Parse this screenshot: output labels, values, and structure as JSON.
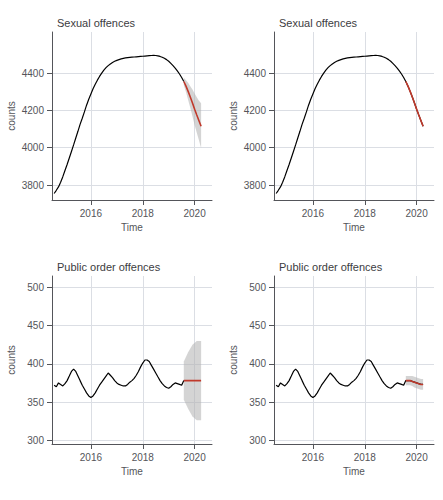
{
  "chart_data": [
    {
      "type": "line",
      "title": "Sexual offences",
      "xlabel": "Time",
      "ylabel": "counts",
      "xlim": [
        2014.5,
        2020.67
      ],
      "ylim": [
        3720,
        4620
      ],
      "xticks": [
        2016,
        2018,
        2020
      ],
      "yticks": [
        3800,
        4000,
        4200,
        4400
      ],
      "grid": true,
      "series": [
        {
          "type": "line",
          "color": "black",
          "x": [
            2014.583,
            2014.667,
            2014.75,
            2014.833,
            2014.917,
            2015.0,
            2015.083,
            2015.167,
            2015.25,
            2015.333,
            2015.417,
            2015.5,
            2015.583,
            2015.667,
            2015.75,
            2015.833,
            2015.917,
            2016.0,
            2016.083,
            2016.167,
            2016.25,
            2016.333,
            2016.417,
            2016.5,
            2016.583,
            2016.667,
            2016.75,
            2016.833,
            2016.917,
            2017.0,
            2017.083,
            2017.167,
            2017.25,
            2017.333,
            2017.417,
            2017.5,
            2017.583,
            2017.667,
            2017.75,
            2017.833,
            2017.917,
            2018.0,
            2018.083,
            2018.167,
            2018.25,
            2018.333,
            2018.417,
            2018.5,
            2018.583,
            2018.667,
            2018.75,
            2018.833,
            2018.917,
            2019.0,
            2019.083,
            2019.167,
            2019.25,
            2019.333,
            2019.417,
            2019.5,
            2019.583
          ],
          "values": [
            3755,
            3772,
            3790,
            3815,
            3845,
            3878,
            3910,
            3945,
            3980,
            4015,
            4052,
            4088,
            4125,
            4158,
            4192,
            4228,
            4260,
            4288,
            4316,
            4340,
            4362,
            4382,
            4400,
            4416,
            4429,
            4440,
            4449,
            4457,
            4463,
            4468,
            4472,
            4476,
            4479,
            4481,
            4483,
            4484,
            4485,
            4486,
            4487,
            4488,
            4489,
            4490,
            4491,
            4492,
            4493,
            4494,
            4495,
            4494,
            4492,
            4489,
            4485,
            4479,
            4472,
            4463,
            4452,
            4440,
            4427,
            4412,
            4395,
            4376,
            4355
          ]
        },
        {
          "type": "band",
          "color": "#b0b0b0",
          "x": [
            2019.583,
            2019.667,
            2019.75,
            2019.833,
            2019.917,
            2020.0,
            2020.083,
            2020.167,
            2020.25
          ],
          "lower": [
            4335,
            4298,
            4256,
            4214,
            4168,
            4122,
            4080,
            4040,
            3998
          ],
          "upper": [
            4375,
            4362,
            4348,
            4330,
            4312,
            4290,
            4270,
            4252,
            4238
          ]
        },
        {
          "type": "line",
          "color": "#c0392b",
          "x": [
            2019.583,
            2019.667,
            2019.75,
            2019.833,
            2019.917,
            2020.0,
            2020.083,
            2020.167,
            2020.25
          ],
          "values": [
            4355,
            4330,
            4302,
            4272,
            4240,
            4206,
            4175,
            4145,
            4115
          ]
        }
      ]
    },
    {
      "type": "line",
      "title": "Sexual offences",
      "xlabel": "Time",
      "ylabel": "counts",
      "xlim": [
        2014.5,
        2020.67
      ],
      "ylim": [
        3720,
        4620
      ],
      "xticks": [
        2016,
        2018,
        2020
      ],
      "yticks": [
        3800,
        4000,
        4200,
        4400
      ],
      "grid": true,
      "series": [
        {
          "type": "line",
          "color": "black",
          "x": [
            2014.583,
            2014.667,
            2014.75,
            2014.833,
            2014.917,
            2015.0,
            2015.083,
            2015.167,
            2015.25,
            2015.333,
            2015.417,
            2015.5,
            2015.583,
            2015.667,
            2015.75,
            2015.833,
            2015.917,
            2016.0,
            2016.083,
            2016.167,
            2016.25,
            2016.333,
            2016.417,
            2016.5,
            2016.583,
            2016.667,
            2016.75,
            2016.833,
            2016.917,
            2017.0,
            2017.083,
            2017.167,
            2017.25,
            2017.333,
            2017.417,
            2017.5,
            2017.583,
            2017.667,
            2017.75,
            2017.833,
            2017.917,
            2018.0,
            2018.083,
            2018.167,
            2018.25,
            2018.333,
            2018.417,
            2018.5,
            2018.583,
            2018.667,
            2018.75,
            2018.833,
            2018.917,
            2019.0,
            2019.083,
            2019.167,
            2019.25,
            2019.333,
            2019.417,
            2019.5,
            2019.583,
            2019.667,
            2019.75,
            2019.833,
            2019.917,
            2020.0,
            2020.083,
            2020.167,
            2020.25
          ],
          "values": [
            3755,
            3772,
            3790,
            3815,
            3845,
            3878,
            3910,
            3945,
            3980,
            4015,
            4052,
            4088,
            4125,
            4158,
            4192,
            4228,
            4260,
            4288,
            4316,
            4340,
            4362,
            4382,
            4400,
            4416,
            4429,
            4440,
            4449,
            4457,
            4463,
            4468,
            4472,
            4476,
            4479,
            4481,
            4483,
            4484,
            4485,
            4486,
            4487,
            4488,
            4489,
            4490,
            4491,
            4492,
            4493,
            4494,
            4495,
            4494,
            4492,
            4489,
            4485,
            4479,
            4472,
            4463,
            4452,
            4440,
            4427,
            4412,
            4395,
            4376,
            4355,
            4330,
            4302,
            4272,
            4240,
            4206,
            4175,
            4145,
            4115
          ]
        },
        {
          "type": "line",
          "color": "#c0392b",
          "x": [
            2019.583,
            2019.667,
            2019.75,
            2019.833,
            2019.917,
            2020.0,
            2020.083,
            2020.167,
            2020.25
          ],
          "values": [
            4355,
            4330,
            4302,
            4272,
            4240,
            4206,
            4175,
            4145,
            4115
          ]
        }
      ]
    },
    {
      "type": "line",
      "title": "Public order offences",
      "xlabel": "Time",
      "ylabel": "counts",
      "xlim": [
        2014.5,
        2020.67
      ],
      "ylim": [
        295,
        515
      ],
      "xticks": [
        2016,
        2018,
        2020
      ],
      "yticks": [
        300,
        350,
        400,
        450,
        500
      ],
      "grid": true,
      "series": [
        {
          "type": "line",
          "color": "black",
          "x": [
            2014.583,
            2014.667,
            2014.75,
            2014.833,
            2014.917,
            2015.0,
            2015.083,
            2015.167,
            2015.25,
            2015.333,
            2015.417,
            2015.5,
            2015.583,
            2015.667,
            2015.75,
            2015.833,
            2015.917,
            2016.0,
            2016.083,
            2016.167,
            2016.25,
            2016.333,
            2016.417,
            2016.5,
            2016.583,
            2016.667,
            2016.75,
            2016.833,
            2016.917,
            2017.0,
            2017.083,
            2017.167,
            2017.25,
            2017.333,
            2017.417,
            2017.5,
            2017.583,
            2017.667,
            2017.75,
            2017.833,
            2017.917,
            2018.0,
            2018.083,
            2018.167,
            2018.25,
            2018.333,
            2018.417,
            2018.5,
            2018.583,
            2018.667,
            2018.75,
            2018.833,
            2018.917,
            2019.0,
            2019.083,
            2019.167,
            2019.25,
            2019.333,
            2019.417,
            2019.5,
            2019.583
          ],
          "values": [
            372,
            370,
            375,
            373,
            371,
            374,
            378,
            384,
            390,
            393,
            390,
            384,
            378,
            372,
            367,
            362,
            358,
            356,
            358,
            362,
            367,
            372,
            376,
            380,
            384,
            388,
            385,
            382,
            378,
            375,
            373,
            372,
            371,
            371,
            373,
            376,
            378,
            381,
            385,
            390,
            396,
            401,
            405,
            405,
            403,
            398,
            393,
            388,
            383,
            378,
            374,
            371,
            369,
            368,
            370,
            373,
            375,
            374,
            373,
            372,
            378
          ]
        },
        {
          "type": "band",
          "color": "#b0b0b0",
          "x": [
            2019.583,
            2019.75,
            2019.917,
            2020.083,
            2020.25
          ],
          "lower": [
            353,
            341,
            331,
            326,
            326
          ],
          "upper": [
            403,
            415,
            425,
            430,
            430
          ]
        },
        {
          "type": "line",
          "color": "#c0392b",
          "x": [
            2019.583,
            2019.75,
            2019.917,
            2020.083,
            2020.25
          ],
          "values": [
            378,
            378,
            378,
            378,
            378
          ]
        }
      ]
    },
    {
      "type": "line",
      "title": "Public order offences",
      "xlabel": "Time",
      "ylabel": "counts",
      "xlim": [
        2014.5,
        2020.67
      ],
      "ylim": [
        295,
        515
      ],
      "xticks": [
        2016,
        2018,
        2020
      ],
      "yticks": [
        300,
        350,
        400,
        450,
        500
      ],
      "grid": true,
      "series": [
        {
          "type": "line",
          "color": "black",
          "x": [
            2014.583,
            2014.667,
            2014.75,
            2014.833,
            2014.917,
            2015.0,
            2015.083,
            2015.167,
            2015.25,
            2015.333,
            2015.417,
            2015.5,
            2015.583,
            2015.667,
            2015.75,
            2015.833,
            2015.917,
            2016.0,
            2016.083,
            2016.167,
            2016.25,
            2016.333,
            2016.417,
            2016.5,
            2016.583,
            2016.667,
            2016.75,
            2016.833,
            2016.917,
            2017.0,
            2017.083,
            2017.167,
            2017.25,
            2017.333,
            2017.417,
            2017.5,
            2017.583,
            2017.667,
            2017.75,
            2017.833,
            2017.917,
            2018.0,
            2018.083,
            2018.167,
            2018.25,
            2018.333,
            2018.417,
            2018.5,
            2018.583,
            2018.667,
            2018.75,
            2018.833,
            2018.917,
            2019.0,
            2019.083,
            2019.167,
            2019.25,
            2019.333,
            2019.417,
            2019.5,
            2019.583,
            2019.667,
            2019.75,
            2019.833,
            2019.917,
            2020.0,
            2020.083,
            2020.167,
            2020.25
          ],
          "values": [
            372,
            370,
            375,
            373,
            371,
            374,
            378,
            384,
            390,
            393,
            390,
            384,
            378,
            372,
            367,
            362,
            358,
            356,
            358,
            362,
            367,
            372,
            376,
            380,
            384,
            388,
            385,
            382,
            378,
            375,
            373,
            372,
            371,
            371,
            373,
            376,
            378,
            381,
            385,
            390,
            396,
            401,
            405,
            405,
            403,
            398,
            393,
            388,
            383,
            378,
            374,
            371,
            369,
            368,
            370,
            373,
            375,
            374,
            373,
            372,
            378,
            378,
            378,
            377,
            376,
            375,
            374,
            373,
            373
          ]
        },
        {
          "type": "band",
          "color": "#b0b0b0",
          "x": [
            2019.583,
            2019.667,
            2019.75,
            2019.833,
            2019.917,
            2020.0,
            2020.083,
            2020.167,
            2020.25
          ],
          "lower": [
            372,
            372,
            372,
            371,
            369,
            368,
            367,
            366,
            366
          ],
          "upper": [
            384,
            384,
            384,
            384,
            383,
            382,
            381,
            380,
            380
          ]
        },
        {
          "type": "line",
          "color": "#c0392b",
          "x": [
            2019.583,
            2019.667,
            2019.75,
            2019.833,
            2019.917,
            2020.0,
            2020.083,
            2020.167,
            2020.25
          ],
          "values": [
            378,
            378,
            378,
            377,
            376,
            375,
            374,
            373,
            373
          ]
        }
      ]
    }
  ]
}
